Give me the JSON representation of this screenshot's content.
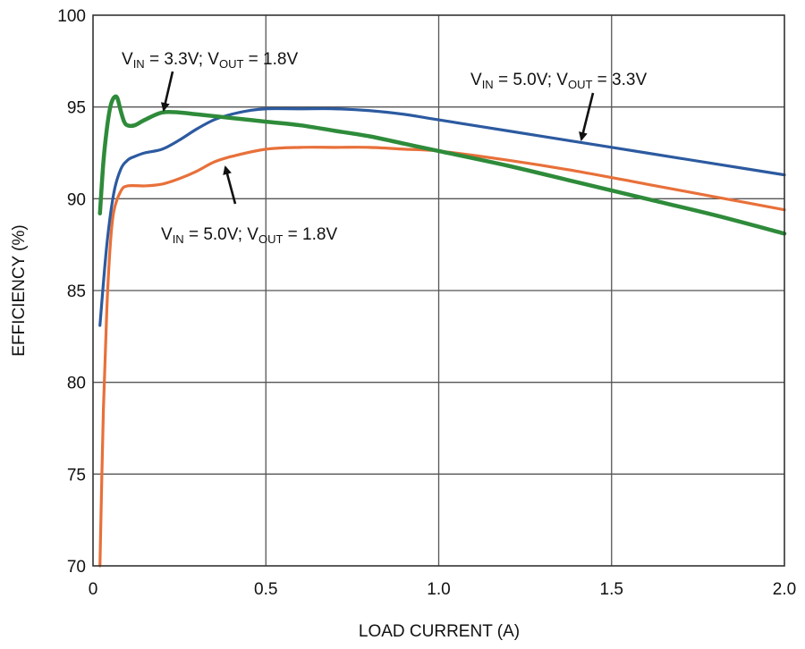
{
  "chart_data": {
    "type": "line",
    "title": "",
    "xlabel": "LOAD CURRENT (A)",
    "ylabel": "EFFICIENCY (%)",
    "xlim": [
      0,
      2.0
    ],
    "ylim": [
      70,
      100
    ],
    "xticks": [
      "0",
      "0.5",
      "1.0",
      "1.5",
      "2.0"
    ],
    "yticks": [
      "70",
      "75",
      "80",
      "85",
      "90",
      "95",
      "100"
    ],
    "grid": true,
    "series": [
      {
        "name": "VIN = 3.3V; VOUT = 1.8V",
        "color": "#2e8b3a",
        "x": [
          0.02,
          0.03,
          0.04,
          0.05,
          0.06,
          0.07,
          0.08,
          0.09,
          0.1,
          0.12,
          0.15,
          0.2,
          0.25,
          0.3,
          0.4,
          0.5,
          0.6,
          0.7,
          0.8,
          0.9,
          1.0,
          1.2,
          1.4,
          1.6,
          1.8,
          2.0
        ],
        "y": [
          89.2,
          92.0,
          93.8,
          95.0,
          95.5,
          95.5,
          94.8,
          94.2,
          94.0,
          94.0,
          94.3,
          94.7,
          94.7,
          94.6,
          94.4,
          94.2,
          94.0,
          93.7,
          93.4,
          93.0,
          92.6,
          91.8,
          90.9,
          90.0,
          89.1,
          88.1
        ]
      },
      {
        "name": "VIN = 5.0V; VOUT = 3.3V",
        "color": "#2c5aa0",
        "x": [
          0.02,
          0.04,
          0.06,
          0.08,
          0.1,
          0.12,
          0.15,
          0.2,
          0.25,
          0.3,
          0.35,
          0.4,
          0.45,
          0.5,
          0.6,
          0.7,
          0.8,
          0.9,
          1.0,
          1.2,
          1.4,
          1.6,
          1.8,
          2.0
        ],
        "y": [
          83.1,
          87.5,
          90.3,
          91.6,
          92.1,
          92.3,
          92.5,
          92.7,
          93.2,
          93.8,
          94.3,
          94.6,
          94.8,
          94.9,
          94.9,
          94.9,
          94.8,
          94.6,
          94.3,
          93.7,
          93.1,
          92.5,
          91.9,
          91.3
        ]
      },
      {
        "name": "VIN = 5.0V; VOUT = 1.8V",
        "color": "#e8703a",
        "x": [
          0.02,
          0.03,
          0.04,
          0.05,
          0.06,
          0.08,
          0.1,
          0.15,
          0.2,
          0.25,
          0.3,
          0.35,
          0.4,
          0.5,
          0.6,
          0.7,
          0.8,
          0.9,
          1.0,
          1.2,
          1.4,
          1.6,
          1.8,
          2.0
        ],
        "y": [
          70.0,
          78.5,
          84.0,
          87.5,
          89.3,
          90.4,
          90.7,
          90.7,
          90.8,
          91.1,
          91.5,
          92.0,
          92.3,
          92.7,
          92.8,
          92.8,
          92.8,
          92.7,
          92.6,
          92.1,
          91.5,
          90.8,
          90.1,
          89.4
        ]
      }
    ],
    "annotations": [
      {
        "series": 0,
        "label_main1": "V",
        "label_sub1": "IN",
        "label_mid": " = 3.3V; V",
        "label_sub2": "OUT",
        "label_end": " = 1.8V"
      },
      {
        "series": 1,
        "label_main1": "V",
        "label_sub1": "IN",
        "label_mid": " = 5.0V; V",
        "label_sub2": "OUT",
        "label_end": " = 3.3V"
      },
      {
        "series": 2,
        "label_main1": "V",
        "label_sub1": "IN",
        "label_mid": " = 5.0V; V",
        "label_sub2": "OUT",
        "label_end": " = 1.8V"
      }
    ]
  }
}
